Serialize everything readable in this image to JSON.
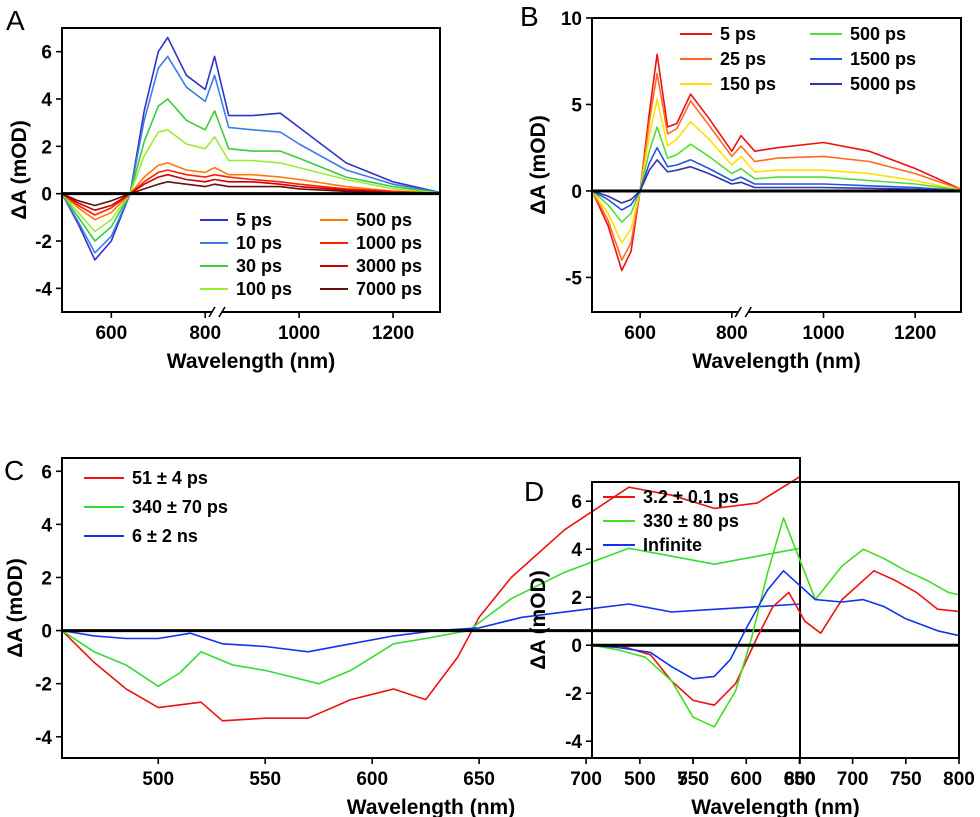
{
  "chart_data": [
    {
      "panel": "A",
      "type": "line",
      "xlabel": "Wavelength (nm)",
      "ylabel": "ΔA (mOD)",
      "xlim": [
        495,
        1300
      ],
      "ylim": [
        -5,
        7
      ],
      "xticks": [
        600,
        800,
        1000,
        1200
      ],
      "yticks": [
        -4,
        -2,
        0,
        2,
        4,
        6
      ],
      "axis_break_at": 825,
      "legend": "bottom-right, two columns",
      "series": [
        {
          "name": "5 ps",
          "color": "#3232cc",
          "x": [
            495,
            530,
            565,
            600,
            640,
            670,
            700,
            720,
            760,
            800,
            820,
            850,
            900,
            960,
            1000,
            1100,
            1200,
            1300
          ],
          "y": [
            0,
            -1.3,
            -2.8,
            -2.0,
            0,
            3.5,
            6.0,
            6.6,
            5.0,
            4.4,
            5.8,
            3.3,
            3.3,
            3.4,
            2.8,
            1.3,
            0.5,
            0.05
          ]
        },
        {
          "name": "10 ps",
          "color": "#3c7ee6",
          "x": [
            495,
            530,
            565,
            600,
            640,
            670,
            700,
            720,
            760,
            800,
            820,
            850,
            900,
            960,
            1000,
            1100,
            1200,
            1300
          ],
          "y": [
            0,
            -1.2,
            -2.5,
            -1.8,
            0,
            3.1,
            5.3,
            5.8,
            4.5,
            3.9,
            5.0,
            2.8,
            2.7,
            2.6,
            2.1,
            1.0,
            0.4,
            0.05
          ]
        },
        {
          "name": "30 ps",
          "color": "#3ccc3c",
          "x": [
            495,
            530,
            565,
            600,
            640,
            670,
            700,
            720,
            760,
            800,
            820,
            850,
            900,
            960,
            1000,
            1100,
            1200,
            1300
          ],
          "y": [
            0,
            -1.0,
            -2.0,
            -1.4,
            0,
            2.2,
            3.7,
            4.0,
            3.1,
            2.7,
            3.5,
            1.9,
            1.8,
            1.8,
            1.5,
            0.7,
            0.3,
            0.03
          ]
        },
        {
          "name": "100 ps",
          "color": "#99ee33",
          "x": [
            495,
            530,
            565,
            600,
            640,
            670,
            700,
            720,
            760,
            800,
            820,
            850,
            900,
            960,
            1000,
            1100,
            1200,
            1300
          ],
          "y": [
            0,
            -0.8,
            -1.6,
            -1.1,
            0,
            1.6,
            2.6,
            2.7,
            2.1,
            1.9,
            2.4,
            1.4,
            1.4,
            1.3,
            1.1,
            0.6,
            0.2,
            0.02
          ]
        },
        {
          "name": "500 ps",
          "color": "#ff7a00",
          "x": [
            495,
            530,
            565,
            600,
            640,
            670,
            700,
            720,
            760,
            800,
            820,
            850,
            900,
            960,
            1000,
            1100,
            1200,
            1300
          ],
          "y": [
            0,
            -0.6,
            -1.1,
            -0.8,
            0,
            0.7,
            1.2,
            1.3,
            1.0,
            0.9,
            1.1,
            0.8,
            0.8,
            0.7,
            0.6,
            0.3,
            0.1,
            0.01
          ]
        },
        {
          "name": "1000 ps",
          "color": "#ff2000",
          "x": [
            495,
            530,
            565,
            600,
            640,
            670,
            700,
            720,
            760,
            800,
            820,
            850,
            900,
            960,
            1000,
            1100,
            1200,
            1300
          ],
          "y": [
            0,
            -0.5,
            -0.9,
            -0.6,
            0,
            0.5,
            0.9,
            1.0,
            0.8,
            0.7,
            0.8,
            0.7,
            0.6,
            0.5,
            0.4,
            0.2,
            0.1,
            0.01
          ]
        },
        {
          "name": "3000 ps",
          "color": "#cc0000",
          "x": [
            495,
            530,
            565,
            600,
            640,
            670,
            700,
            720,
            760,
            800,
            820,
            850,
            900,
            960,
            1000,
            1100,
            1200,
            1300
          ],
          "y": [
            0,
            -0.4,
            -0.7,
            -0.5,
            0,
            0.4,
            0.7,
            0.8,
            0.6,
            0.5,
            0.6,
            0.5,
            0.5,
            0.4,
            0.3,
            0.15,
            0.05,
            0.01
          ]
        },
        {
          "name": "7000 ps",
          "color": "#661111",
          "x": [
            495,
            530,
            565,
            600,
            640,
            670,
            700,
            720,
            760,
            800,
            820,
            850,
            900,
            960,
            1000,
            1100,
            1200,
            1300
          ],
          "y": [
            0,
            -0.3,
            -0.5,
            -0.3,
            0,
            0.2,
            0.4,
            0.5,
            0.4,
            0.3,
            0.4,
            0.3,
            0.3,
            0.3,
            0.2,
            0.1,
            0.03,
            0.0
          ]
        }
      ]
    },
    {
      "panel": "B",
      "type": "line",
      "xlabel": "Wavelength (nm)",
      "ylabel": "ΔA (mOD)",
      "xlim": [
        495,
        1300
      ],
      "ylim": [
        -7,
        10
      ],
      "xticks": [
        600,
        800,
        1000,
        1200
      ],
      "yticks": [
        -5,
        0,
        5,
        10
      ],
      "axis_break_at": 825,
      "legend": "top-right, two columns",
      "series": [
        {
          "name": "5 ps",
          "color": "#ee1111",
          "x": [
            495,
            530,
            560,
            580,
            600,
            620,
            637,
            660,
            680,
            710,
            750,
            800,
            820,
            850,
            900,
            1000,
            1100,
            1200,
            1300
          ],
          "y": [
            0,
            -2.0,
            -4.6,
            -3.5,
            0,
            4.5,
            7.9,
            3.7,
            3.9,
            5.6,
            4.2,
            2.3,
            3.2,
            2.3,
            2.5,
            2.8,
            2.3,
            1.3,
            0.1
          ]
        },
        {
          "name": "25 ps",
          "color": "#ff6a20",
          "x": [
            495,
            530,
            560,
            580,
            600,
            620,
            637,
            660,
            680,
            710,
            750,
            800,
            820,
            850,
            900,
            1000,
            1100,
            1200,
            1300
          ],
          "y": [
            0,
            -1.7,
            -4.0,
            -3.0,
            0,
            4.0,
            6.8,
            3.3,
            3.6,
            5.2,
            3.8,
            2.0,
            2.6,
            1.7,
            1.9,
            2.0,
            1.7,
            1.0,
            0.1
          ]
        },
        {
          "name": "150 ps",
          "color": "#ffe000",
          "x": [
            495,
            530,
            560,
            580,
            600,
            620,
            637,
            660,
            680,
            710,
            750,
            800,
            820,
            850,
            900,
            1000,
            1100,
            1200,
            1300
          ],
          "y": [
            0,
            -1.3,
            -3.0,
            -2.2,
            0,
            3.2,
            5.3,
            2.6,
            3.0,
            4.0,
            3.0,
            1.5,
            2.0,
            1.1,
            1.2,
            1.2,
            1.0,
            0.6,
            0.05
          ]
        },
        {
          "name": "500 ps",
          "color": "#55dd33",
          "x": [
            495,
            530,
            560,
            580,
            600,
            620,
            637,
            660,
            680,
            710,
            750,
            800,
            820,
            850,
            900,
            1000,
            1100,
            1200,
            1300
          ],
          "y": [
            0,
            -0.8,
            -1.8,
            -1.3,
            0,
            2.3,
            3.7,
            1.9,
            2.1,
            2.7,
            2.0,
            1.0,
            1.3,
            0.7,
            0.8,
            0.8,
            0.6,
            0.4,
            0.05
          ]
        },
        {
          "name": "1500 ps",
          "color": "#2255dd",
          "x": [
            495,
            530,
            560,
            580,
            600,
            620,
            637,
            660,
            680,
            710,
            750,
            800,
            820,
            850,
            900,
            1000,
            1100,
            1200,
            1300
          ],
          "y": [
            0,
            -0.5,
            -1.1,
            -0.8,
            0,
            1.6,
            2.5,
            1.4,
            1.5,
            1.8,
            1.3,
            0.6,
            0.8,
            0.4,
            0.4,
            0.4,
            0.3,
            0.2,
            0.02
          ]
        },
        {
          "name": "5000 ps",
          "color": "#3333aa",
          "x": [
            495,
            530,
            560,
            580,
            600,
            620,
            637,
            660,
            680,
            710,
            750,
            800,
            820,
            850,
            900,
            1000,
            1100,
            1200,
            1300
          ],
          "y": [
            0,
            -0.3,
            -0.7,
            -0.5,
            0,
            1.2,
            1.8,
            1.1,
            1.2,
            1.4,
            1.0,
            0.4,
            0.5,
            0.2,
            0.2,
            0.2,
            0.15,
            0.1,
            0.0
          ]
        }
      ]
    },
    {
      "panel": "C",
      "type": "line",
      "xlabel": "Wavelength (nm)",
      "ylabel": "ΔA (mOD)",
      "xlim": [
        455,
        800
      ],
      "ylim": [
        -4.8,
        6.5
      ],
      "xticks": [
        500,
        550,
        600,
        650,
        700,
        750,
        800
      ],
      "yticks": [
        -4,
        -2,
        0,
        2,
        4,
        6
      ],
      "legend": "top-left",
      "series": [
        {
          "name": "51 ± 4 ps",
          "color": "#ee1111",
          "x": [
            455,
            470,
            485,
            500,
            520,
            530,
            550,
            570,
            590,
            610,
            625,
            640,
            650,
            665,
            690,
            720,
            740,
            760,
            780,
            800
          ],
          "y": [
            0,
            -1.2,
            -2.2,
            -2.9,
            -2.7,
            -3.4,
            -3.3,
            -3.3,
            -2.6,
            -2.2,
            -2.6,
            -1.0,
            0.5,
            2.0,
            3.8,
            5.4,
            5.1,
            4.6,
            4.8,
            5.8
          ]
        },
        {
          "name": "340 ± 70 ps",
          "color": "#33dd33",
          "x": [
            455,
            470,
            485,
            500,
            510,
            520,
            535,
            550,
            575,
            590,
            610,
            625,
            645,
            665,
            690,
            720,
            740,
            760,
            780,
            800
          ],
          "y": [
            0,
            -0.8,
            -1.3,
            -2.1,
            -1.6,
            -0.8,
            -1.3,
            -1.5,
            -2.0,
            -1.5,
            -0.5,
            -0.3,
            0,
            1.2,
            2.2,
            3.1,
            2.8,
            2.5,
            2.8,
            3.1
          ]
        },
        {
          "name": "6 ± 2 ns",
          "color": "#1133ee",
          "x": [
            455,
            470,
            485,
            500,
            515,
            530,
            550,
            570,
            590,
            610,
            630,
            650,
            670,
            700,
            720,
            740,
            760,
            780,
            800
          ],
          "y": [
            0,
            -0.2,
            -0.3,
            -0.3,
            -0.1,
            -0.5,
            -0.6,
            -0.8,
            -0.5,
            -0.2,
            0,
            0.1,
            0.5,
            0.8,
            1.0,
            0.7,
            0.8,
            0.9,
            1.0
          ]
        }
      ]
    },
    {
      "panel": "D",
      "type": "line",
      "xlabel": "Wavelength (nm)",
      "ylabel": "ΔA (mOD)",
      "xlim": [
        455,
        800
      ],
      "ylim": [
        -4.7,
        6.8
      ],
      "xticks": [
        500,
        550,
        600,
        650,
        700,
        750,
        800
      ],
      "yticks": [
        -4,
        -2,
        0,
        2,
        4,
        6
      ],
      "legend": "top-left",
      "series": [
        {
          "name": "3.2 ± 0.1 ps",
          "color": "#ee1111",
          "x": [
            455,
            480,
            510,
            530,
            550,
            570,
            590,
            610,
            625,
            640,
            655,
            670,
            690,
            720,
            740,
            760,
            780,
            800
          ],
          "y": [
            0,
            0,
            -0.4,
            -1.5,
            -2.3,
            -2.5,
            -1.6,
            0.3,
            1.6,
            2.2,
            1.0,
            0.5,
            1.9,
            3.1,
            2.7,
            2.2,
            1.5,
            1.4
          ]
        },
        {
          "name": "330 ± 80 ps",
          "color": "#44dd22",
          "x": [
            455,
            480,
            505,
            530,
            550,
            570,
            590,
            605,
            620,
            635,
            650,
            665,
            690,
            710,
            730,
            750,
            770,
            790,
            800
          ],
          "y": [
            0,
            -0.2,
            -0.5,
            -1.5,
            -3.0,
            -3.4,
            -1.9,
            0.3,
            3.0,
            5.3,
            3.6,
            1.9,
            3.3,
            4.0,
            3.6,
            3.1,
            2.7,
            2.2,
            2.1
          ]
        },
        {
          "name": "Infinite",
          "color": "#1133ee",
          "x": [
            455,
            480,
            510,
            530,
            550,
            570,
            585,
            600,
            620,
            635,
            650,
            665,
            690,
            710,
            730,
            750,
            780,
            800
          ],
          "y": [
            0,
            -0.1,
            -0.3,
            -0.9,
            -1.4,
            -1.3,
            -0.6,
            0.7,
            2.3,
            3.1,
            2.5,
            1.9,
            1.8,
            1.9,
            1.6,
            1.1,
            0.6,
            0.4
          ]
        }
      ]
    }
  ]
}
